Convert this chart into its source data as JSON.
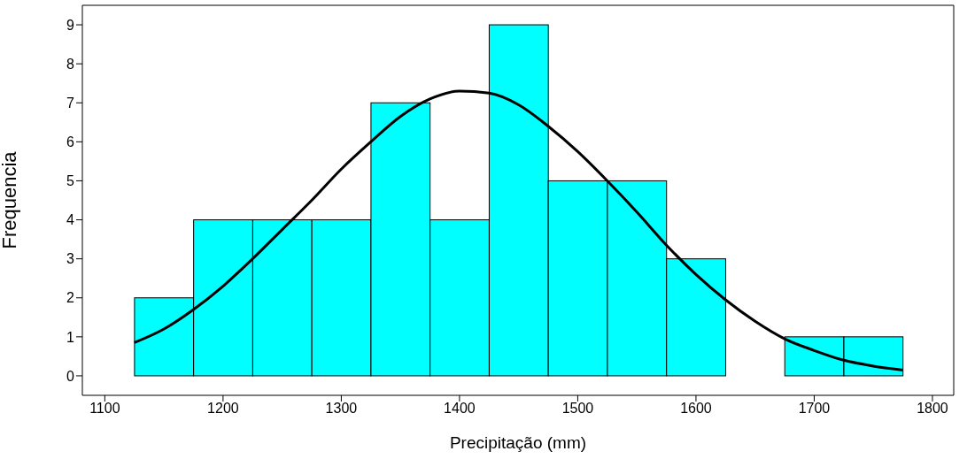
{
  "chart_data": {
    "type": "histogram",
    "xlabel": "Precipitação (mm)",
    "ylabel": "Frequencia",
    "bins": [
      1125,
      1175,
      1225,
      1275,
      1325,
      1375,
      1425,
      1475,
      1525,
      1575,
      1625,
      1675,
      1725,
      1775
    ],
    "values": [
      2,
      4,
      4,
      4,
      7,
      4,
      9,
      5,
      5,
      3,
      0,
      1,
      1
    ],
    "color": "#00ffff",
    "series": [
      {
        "type": "line",
        "color": "#000000",
        "x": [
          1125,
          1150,
          1175,
          1200,
          1225,
          1250,
          1275,
          1300,
          1325,
          1350,
          1375,
          1400,
          1425,
          1450,
          1475,
          1500,
          1525,
          1550,
          1575,
          1600,
          1625,
          1650,
          1675,
          1700,
          1725,
          1750,
          1775
        ],
        "values": [
          0.85,
          1.2,
          1.7,
          2.3,
          3.0,
          3.75,
          4.5,
          5.3,
          6.0,
          6.65,
          7.1,
          7.3,
          7.25,
          6.95,
          6.4,
          5.75,
          5.0,
          4.2,
          3.35,
          2.6,
          1.95,
          1.4,
          0.95,
          0.65,
          0.4,
          0.25,
          0.15
        ]
      }
    ],
    "xlim": [
      1081,
      1818
    ],
    "xticks": [
      1100,
      1200,
      1300,
      1400,
      1500,
      1600,
      1700,
      1800
    ],
    "ylim": [
      -0.5,
      9.5
    ],
    "yticks": [
      0,
      1,
      2,
      3,
      4,
      5,
      6,
      7,
      8,
      9
    ],
    "grid": false
  }
}
